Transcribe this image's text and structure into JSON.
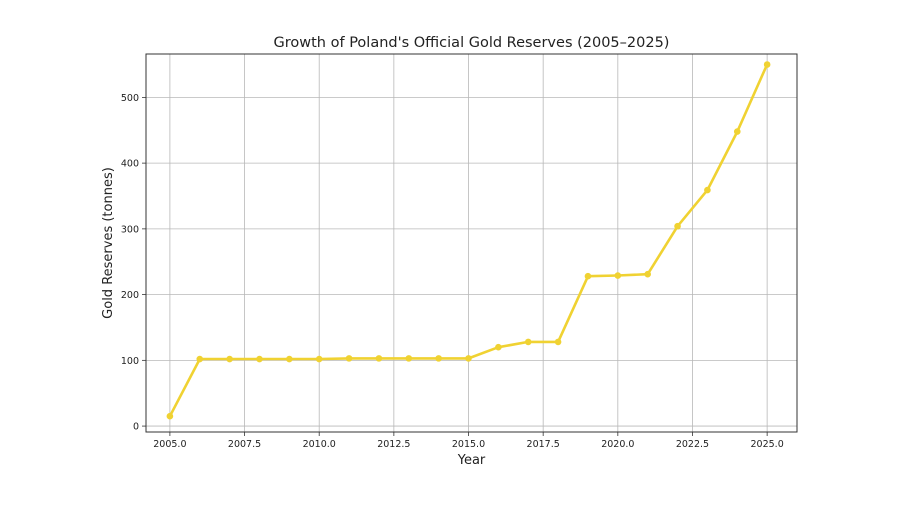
{
  "chart_data": {
    "type": "line",
    "title": "Growth of Poland's Official Gold Reserves (2005–2025)",
    "xlabel": "Year",
    "ylabel": "Gold Reserves (tonnes)",
    "xlim": [
      2004.2,
      2026.0
    ],
    "ylim": [
      -9,
      566
    ],
    "grid": true,
    "x_ticks": [
      2005.0,
      2007.5,
      2010.0,
      2012.5,
      2015.0,
      2017.5,
      2020.0,
      2022.5,
      2025.0
    ],
    "x_tick_labels": [
      "2005.0",
      "2007.5",
      "2010.0",
      "2012.5",
      "2015.0",
      "2017.5",
      "2020.0",
      "2022.5",
      "2025.0"
    ],
    "y_ticks": [
      0,
      100,
      200,
      300,
      400,
      500
    ],
    "y_tick_labels": [
      "0",
      "100",
      "200",
      "300",
      "400",
      "500"
    ],
    "series": [
      {
        "color": "#f0d232",
        "x": [
          2005,
          2006,
          2007,
          2008,
          2009,
          2010,
          2011,
          2012,
          2013,
          2014,
          2015,
          2016,
          2017,
          2018,
          2019,
          2020,
          2021,
          2022,
          2023,
          2024,
          2025
        ],
        "y": [
          15,
          102,
          102,
          102,
          102,
          102,
          103,
          103,
          103,
          103,
          103,
          120,
          128,
          128,
          228,
          229,
          231,
          304,
          359,
          448,
          550
        ]
      }
    ]
  }
}
